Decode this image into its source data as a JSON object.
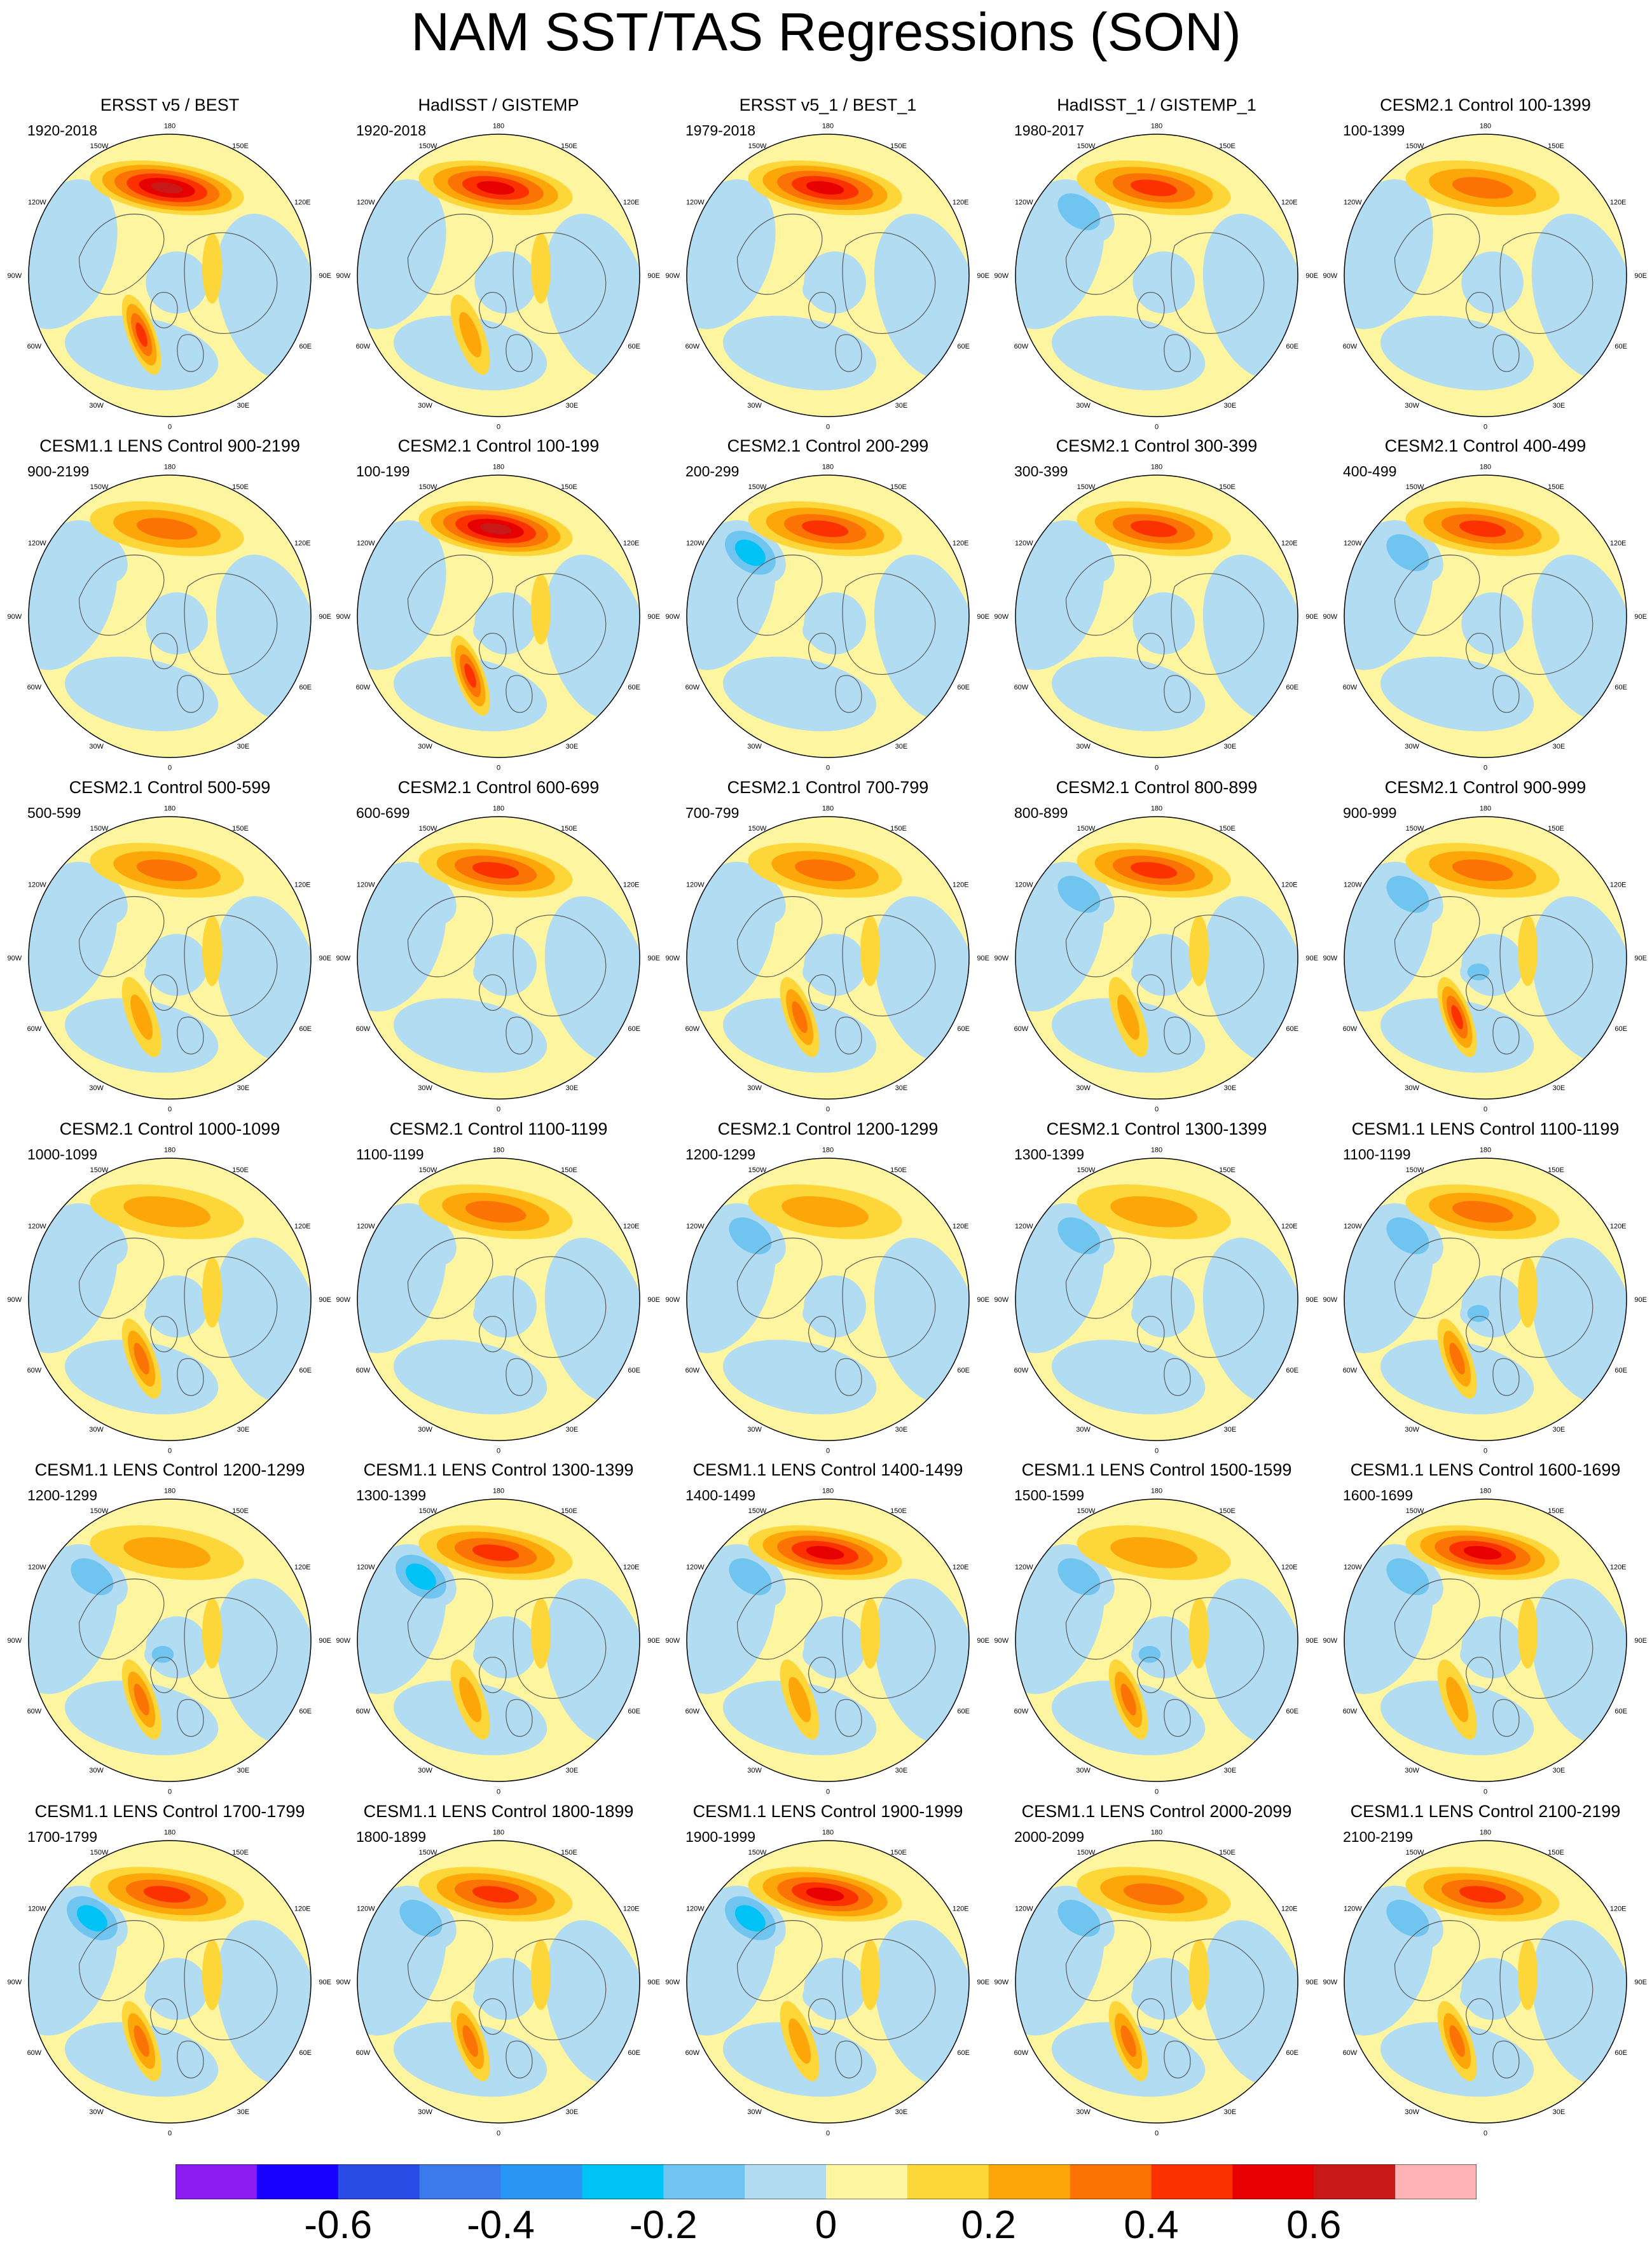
{
  "title": "NAM SST/TAS Regressions (SON)",
  "chart_data": {
    "type": "heatmap",
    "projection": "north polar stereographic",
    "colorbar": {
      "colors": [
        "#8a1cf2",
        "#1a00ff",
        "#2a4ae6",
        "#3a7aea",
        "#2a96f4",
        "#00c2f4",
        "#70c4f0",
        "#b2dcf2",
        "#fdf5a0",
        "#fdd73a",
        "#fca60a",
        "#fb7205",
        "#fb3200",
        "#e60000",
        "#c81818",
        "#ffb3b3"
      ],
      "ticks": [
        "-0.6",
        "-0.4",
        "-0.2",
        "0",
        "0.2",
        "0.4",
        "0.6"
      ],
      "tick_values": [
        -0.6,
        -0.4,
        -0.2,
        0,
        0.2,
        0.4,
        0.6
      ],
      "levels": [
        -0.7,
        -0.6,
        -0.5,
        -0.4,
        -0.3,
        -0.2,
        -0.1,
        0,
        0.1,
        0.2,
        0.3,
        0.4,
        0.5,
        0.6,
        0.7
      ]
    },
    "map_labels": [
      "180",
      "150E",
      "120E",
      "90E",
      "60E",
      "30E",
      "0",
      "30W",
      "60W",
      "90W",
      "120W",
      "150W"
    ],
    "panels": [
      {
        "title": "ERSST v5 / BEST",
        "period": "1920-2018",
        "pac_pos": 0.55,
        "pac_neg": 0.0,
        "atl_pos": 0.3,
        "atl_neg": 0.05
      },
      {
        "title": "HadISST / GISTEMP",
        "period": "1920-2018",
        "pac_pos": 0.45,
        "pac_neg": 0.0,
        "atl_pos": 0.15,
        "atl_neg": 0.05
      },
      {
        "title": "ERSST v5_1 / BEST_1",
        "period": "1979-2018",
        "pac_pos": 0.45,
        "pac_neg": 0.0,
        "atl_pos": 0.1,
        "atl_neg": 0.1
      },
      {
        "title": "HadISST_1 / GISTEMP_1",
        "period": "1980-2017",
        "pac_pos": 0.3,
        "pac_neg": 0.15,
        "atl_pos": 0.1,
        "atl_neg": 0.05
      },
      {
        "title": "CESM2.1 Control 100-1399",
        "period": "100-1399",
        "pac_pos": 0.2,
        "pac_neg": 0.0,
        "atl_pos": 0.1,
        "atl_neg": 0.05
      },
      {
        "title": "CESM1.1 LENS Control 900-2199",
        "period": "900-2199",
        "pac_pos": 0.2,
        "pac_neg": 0.05,
        "atl_pos": 0.1,
        "atl_neg": 0.05
      },
      {
        "title": "CESM2.1 Control 100-199",
        "period": "100-199",
        "pac_pos": 0.55,
        "pac_neg": 0.0,
        "atl_pos": 0.3,
        "atl_neg": 0.15
      },
      {
        "title": "CESM2.1 Control 200-299",
        "period": "200-299",
        "pac_pos": 0.35,
        "pac_neg": 0.3,
        "atl_pos": 0.1,
        "atl_neg": 0.1
      },
      {
        "title": "CESM2.1 Control 300-399",
        "period": "300-399",
        "pac_pos": 0.35,
        "pac_neg": 0.1,
        "atl_pos": 0.1,
        "atl_neg": 0.05
      },
      {
        "title": "CESM2.1 Control 400-499",
        "period": "400-499",
        "pac_pos": 0.3,
        "pac_neg": 0.15,
        "atl_pos": 0.1,
        "atl_neg": 0.05
      },
      {
        "title": "CESM2.1 Control 500-599",
        "period": "500-599",
        "pac_pos": 0.2,
        "pac_neg": 0.05,
        "atl_pos": 0.15,
        "atl_neg": 0.1
      },
      {
        "title": "CESM2.1 Control 600-699",
        "period": "600-699",
        "pac_pos": 0.3,
        "pac_neg": 0.05,
        "atl_pos": 0.1,
        "atl_neg": 0.1
      },
      {
        "title": "CESM2.1 Control 700-799",
        "period": "700-799",
        "pac_pos": 0.2,
        "pac_neg": 0.05,
        "atl_pos": 0.2,
        "atl_neg": 0.1
      },
      {
        "title": "CESM2.1 Control 800-899",
        "period": "800-899",
        "pac_pos": 0.3,
        "pac_neg": 0.15,
        "atl_pos": 0.15,
        "atl_neg": 0.1
      },
      {
        "title": "CESM2.1 Control 900-999",
        "period": "900-999",
        "pac_pos": 0.2,
        "pac_neg": 0.15,
        "atl_pos": 0.3,
        "atl_neg": 0.2
      },
      {
        "title": "CESM2.1 Control 1000-1099",
        "period": "1000-1099",
        "pac_pos": 0.1,
        "pac_neg": 0.1,
        "atl_pos": 0.25,
        "atl_neg": 0.15
      },
      {
        "title": "CESM2.1 Control 1100-1199",
        "period": "1100-1199",
        "pac_pos": 0.25,
        "pac_neg": 0.05,
        "atl_pos": 0.1,
        "atl_neg": 0.15
      },
      {
        "title": "CESM2.1 Control 1200-1299",
        "period": "1200-1299",
        "pac_pos": 0.15,
        "pac_neg": 0.15,
        "atl_pos": 0.05,
        "atl_neg": 0.1
      },
      {
        "title": "CESM2.1 Control 1300-1399",
        "period": "1300-1399",
        "pac_pos": 0.1,
        "pac_neg": 0.15,
        "atl_pos": 0.1,
        "atl_neg": 0.1
      },
      {
        "title": "CESM1.1 LENS Control 1100-1199",
        "period": "1100-1199",
        "pac_pos": 0.2,
        "pac_neg": 0.15,
        "atl_pos": 0.2,
        "atl_neg": 0.2
      },
      {
        "title": "CESM1.1 LENS Control 1200-1299",
        "period": "1200-1299",
        "pac_pos": 0.1,
        "pac_neg": 0.15,
        "atl_pos": 0.2,
        "atl_neg": 0.2
      },
      {
        "title": "CESM1.1 LENS Control 1300-1399",
        "period": "1300-1399",
        "pac_pos": 0.3,
        "pac_neg": 0.25,
        "atl_pos": 0.15,
        "atl_neg": 0.1
      },
      {
        "title": "CESM1.1 LENS Control 1400-1499",
        "period": "1400-1499",
        "pac_pos": 0.45,
        "pac_neg": 0.2,
        "atl_pos": 0.15,
        "atl_neg": 0.15
      },
      {
        "title": "CESM1.1 LENS Control 1500-1599",
        "period": "1500-1599",
        "pac_pos": 0.15,
        "pac_neg": 0.15,
        "atl_pos": 0.2,
        "atl_neg": 0.2
      },
      {
        "title": "CESM1.1 LENS Control 1600-1699",
        "period": "1600-1699",
        "pac_pos": 0.45,
        "pac_neg": 0.15,
        "atl_pos": 0.15,
        "atl_neg": 0.1
      },
      {
        "title": "CESM1.1 LENS Control 1700-1799",
        "period": "1700-1799",
        "pac_pos": 0.3,
        "pac_neg": 0.25,
        "atl_pos": 0.2,
        "atl_neg": 0.1
      },
      {
        "title": "CESM1.1 LENS Control 1800-1899",
        "period": "1800-1899",
        "pac_pos": 0.3,
        "pac_neg": 0.2,
        "atl_pos": 0.2,
        "atl_neg": 0.1
      },
      {
        "title": "CESM1.1 LENS Control 1900-1999",
        "period": "1900-1999",
        "pac_pos": 0.4,
        "pac_neg": 0.25,
        "atl_pos": 0.15,
        "atl_neg": 0.15
      },
      {
        "title": "CESM1.1 LENS Control 2000-2099",
        "period": "2000-2099",
        "pac_pos": 0.2,
        "pac_neg": 0.15,
        "atl_pos": 0.2,
        "atl_neg": 0.1
      },
      {
        "title": "CESM1.1 LENS Control 2100-2199",
        "period": "2100-2199",
        "pac_pos": 0.3,
        "pac_neg": 0.15,
        "atl_pos": 0.2,
        "atl_neg": 0.1
      }
    ]
  }
}
